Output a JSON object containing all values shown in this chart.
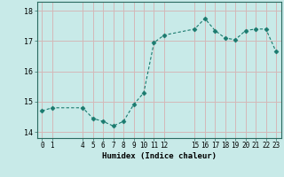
{
  "x": [
    0,
    1,
    4,
    5,
    6,
    7,
    8,
    9,
    10,
    11,
    12,
    15,
    16,
    17,
    18,
    19,
    20,
    21,
    22,
    23
  ],
  "y": [
    14.7,
    14.8,
    14.8,
    14.45,
    14.35,
    14.2,
    14.35,
    14.9,
    15.3,
    16.95,
    17.2,
    17.4,
    17.75,
    17.35,
    17.1,
    17.05,
    17.35,
    17.4,
    17.4,
    16.65
  ],
  "xticks": [
    0,
    1,
    4,
    5,
    6,
    7,
    8,
    9,
    10,
    11,
    12,
    15,
    16,
    17,
    18,
    19,
    20,
    21,
    22,
    23
  ],
  "yticks": [
    14,
    15,
    16,
    17,
    18
  ],
  "ylim": [
    13.8,
    18.3
  ],
  "xlim": [
    -0.5,
    23.5
  ],
  "xlabel": "Humidex (Indice chaleur)",
  "line_color": "#1a7a6e",
  "marker": "D",
  "marker_size": 2.5,
  "bg_color": "#c8eae8",
  "grid_color": "#d4b8b8",
  "title": ""
}
